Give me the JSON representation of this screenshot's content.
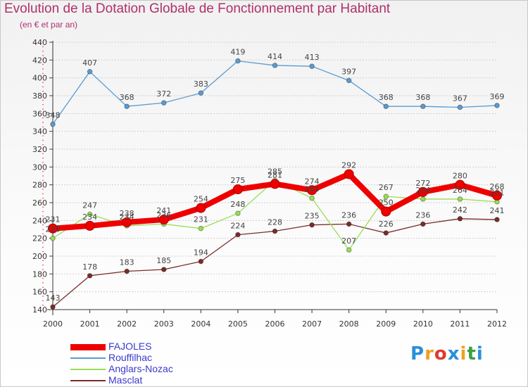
{
  "chart_data": {
    "type": "line",
    "title": "Evolution de la Dotation Globale de Fonctionnement par Habitant",
    "subtitle": "(en € et par an)",
    "categories": [
      "2000",
      "2001",
      "2002",
      "2003",
      "2004",
      "2005",
      "2006",
      "2007",
      "2008",
      "2009",
      "2010",
      "2011",
      "2012"
    ],
    "ylim": [
      140,
      440
    ],
    "yticks": [
      140,
      160,
      180,
      200,
      220,
      240,
      260,
      280,
      300,
      320,
      340,
      360,
      380,
      400,
      420,
      440
    ],
    "legend_position": "bottom-left",
    "series": [
      {
        "name": "FAJOLES",
        "color": "#ee0000",
        "values": [
          231,
          234,
          238,
          241,
          254,
          275,
          281,
          274,
          292,
          250,
          272,
          280,
          268
        ],
        "labels": [
          "231",
          "234",
          "238",
          "241",
          "254",
          "275",
          "281",
          "274",
          "292",
          "250",
          "272",
          "280",
          "268"
        ]
      },
      {
        "name": "Rouffilhac",
        "color": "#5b9bd0",
        "values": [
          348,
          407,
          368,
          372,
          383,
          419,
          414,
          413,
          397,
          368,
          368,
          367,
          369
        ],
        "labels": [
          "348",
          "407",
          "368",
          "372",
          "383",
          "419",
          "414",
          "413",
          "397",
          "368",
          "368",
          "367",
          "369"
        ]
      },
      {
        "name": "Anglars-Nozac",
        "color": "#99dd55",
        "values": [
          220,
          247,
          234,
          236,
          231,
          248,
          285,
          265,
          207,
          267,
          264,
          264,
          261
        ],
        "labels": [
          "220",
          "247",
          "234",
          "236",
          "231",
          "248",
          "285",
          "265",
          "207",
          "267",
          "264",
          "264",
          "261"
        ]
      },
      {
        "name": "Masclat",
        "color": "#7a2c2c",
        "values": [
          143,
          178,
          183,
          185,
          194,
          224,
          228,
          235,
          236,
          226,
          236,
          242,
          241
        ],
        "labels": [
          "143",
          "178",
          "183",
          "185",
          "194",
          "224",
          "228",
          "235",
          "236",
          "226",
          "236",
          "242",
          "241"
        ]
      }
    ]
  },
  "logo": {
    "text": "Proxiti",
    "letter_colors": [
      "#2a8fd8",
      "#f0a020",
      "#e03a2a",
      "#2a8fd8",
      "#f0a020",
      "#3aa040",
      "#2a8fd8"
    ]
  }
}
